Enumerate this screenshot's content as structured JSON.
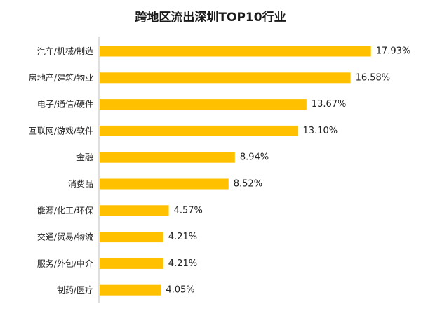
{
  "chart_data": {
    "type": "bar",
    "orientation": "horizontal",
    "title": "跨地区流出深圳TOP10行业",
    "xlabel": "",
    "ylabel": "",
    "categories": [
      "汽车/机械/制造",
      "房地产/建筑/物业",
      "电子/通信/硬件",
      "互联网/游戏/软件",
      "金融",
      "消费品",
      "能源/化工/环保",
      "交通/贸易/物流",
      "服务/外包/中介",
      "制药/医疗"
    ],
    "values": [
      17.93,
      16.58,
      13.67,
      13.1,
      8.94,
      8.52,
      4.57,
      4.21,
      4.21,
      4.05
    ],
    "value_labels": [
      "17.93%",
      "16.58%",
      "13.67%",
      "13.10%",
      "8.94%",
      "8.52%",
      "4.57%",
      "4.21%",
      "4.21%",
      "4.05%"
    ],
    "xlim": [
      0,
      18.5
    ],
    "unit": "%",
    "bar_color": "#FFC000",
    "axis_color": "#BFBFBF",
    "grid": false,
    "legend": "none"
  }
}
